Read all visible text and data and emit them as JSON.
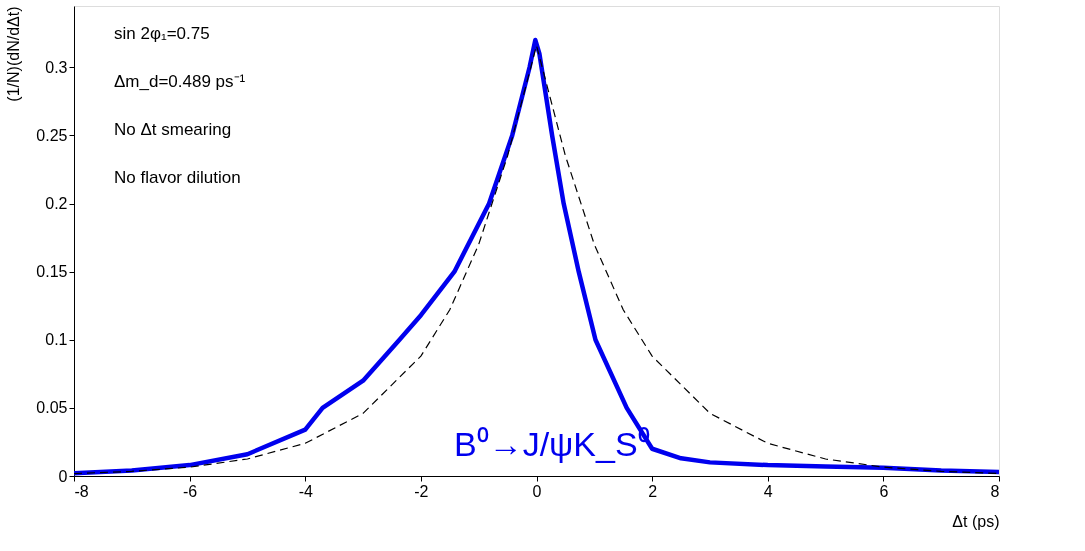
{
  "chart_data": {
    "type": "line",
    "xlabel": "Δt (ps)",
    "ylabel": "(1/N)(dN/dΔt)",
    "xlim": [
      -8,
      8
    ],
    "ylim": [
      0,
      0.345
    ],
    "xticks": [
      -8,
      -6,
      -4,
      -2,
      0,
      2,
      4,
      6,
      8
    ],
    "yticks": [
      0,
      0.05,
      0.1,
      0.15,
      0.2,
      0.25,
      0.3
    ],
    "grid": false,
    "marker": "none",
    "annotations": [
      "sin 2φ₁=0.75",
      "Δm_d=0.489 ps⁻¹",
      "No Δt smearing",
      "No flavor dilution",
      "B⁰→J/ψK_S⁰"
    ],
    "series": [
      {
        "color": "#0000ee",
        "line_style": "solid",
        "x": [
          -8,
          -7,
          -6,
          -5,
          -4,
          -3.7,
          -3,
          -2.37,
          -2,
          -1.42,
          -0.82,
          -0.42,
          -0.12,
          -0.02,
          0.05,
          0.27,
          0.47,
          0.73,
          1.02,
          1.56,
          2,
          2.5,
          3,
          4,
          5,
          6,
          7,
          8
        ],
        "values": [
          0.002,
          0.004,
          0.008,
          0.016,
          0.034,
          0.05,
          0.07,
          0.1,
          0.118,
          0.15,
          0.2,
          0.25,
          0.3,
          0.32,
          0.31,
          0.25,
          0.2,
          0.15,
          0.1,
          0.05,
          0.02,
          0.013,
          0.01,
          0.008,
          0.007,
          0.006,
          0.004,
          0.003
        ]
      },
      {
        "color": "#000000",
        "line_style": "dashed",
        "x": [
          -8,
          -7,
          -6,
          -5,
          -4,
          -3,
          -2,
          -1.5,
          -1,
          -0.5,
          0,
          0.5,
          1,
          1.5,
          2,
          3,
          4,
          5,
          6,
          7,
          8
        ],
        "values": [
          0.0018,
          0.0034,
          0.0065,
          0.0125,
          0.024,
          0.046,
          0.088,
          0.122,
          0.17,
          0.235,
          0.316,
          0.235,
          0.17,
          0.122,
          0.088,
          0.046,
          0.024,
          0.0125,
          0.0065,
          0.0034,
          0.0018
        ]
      }
    ]
  }
}
